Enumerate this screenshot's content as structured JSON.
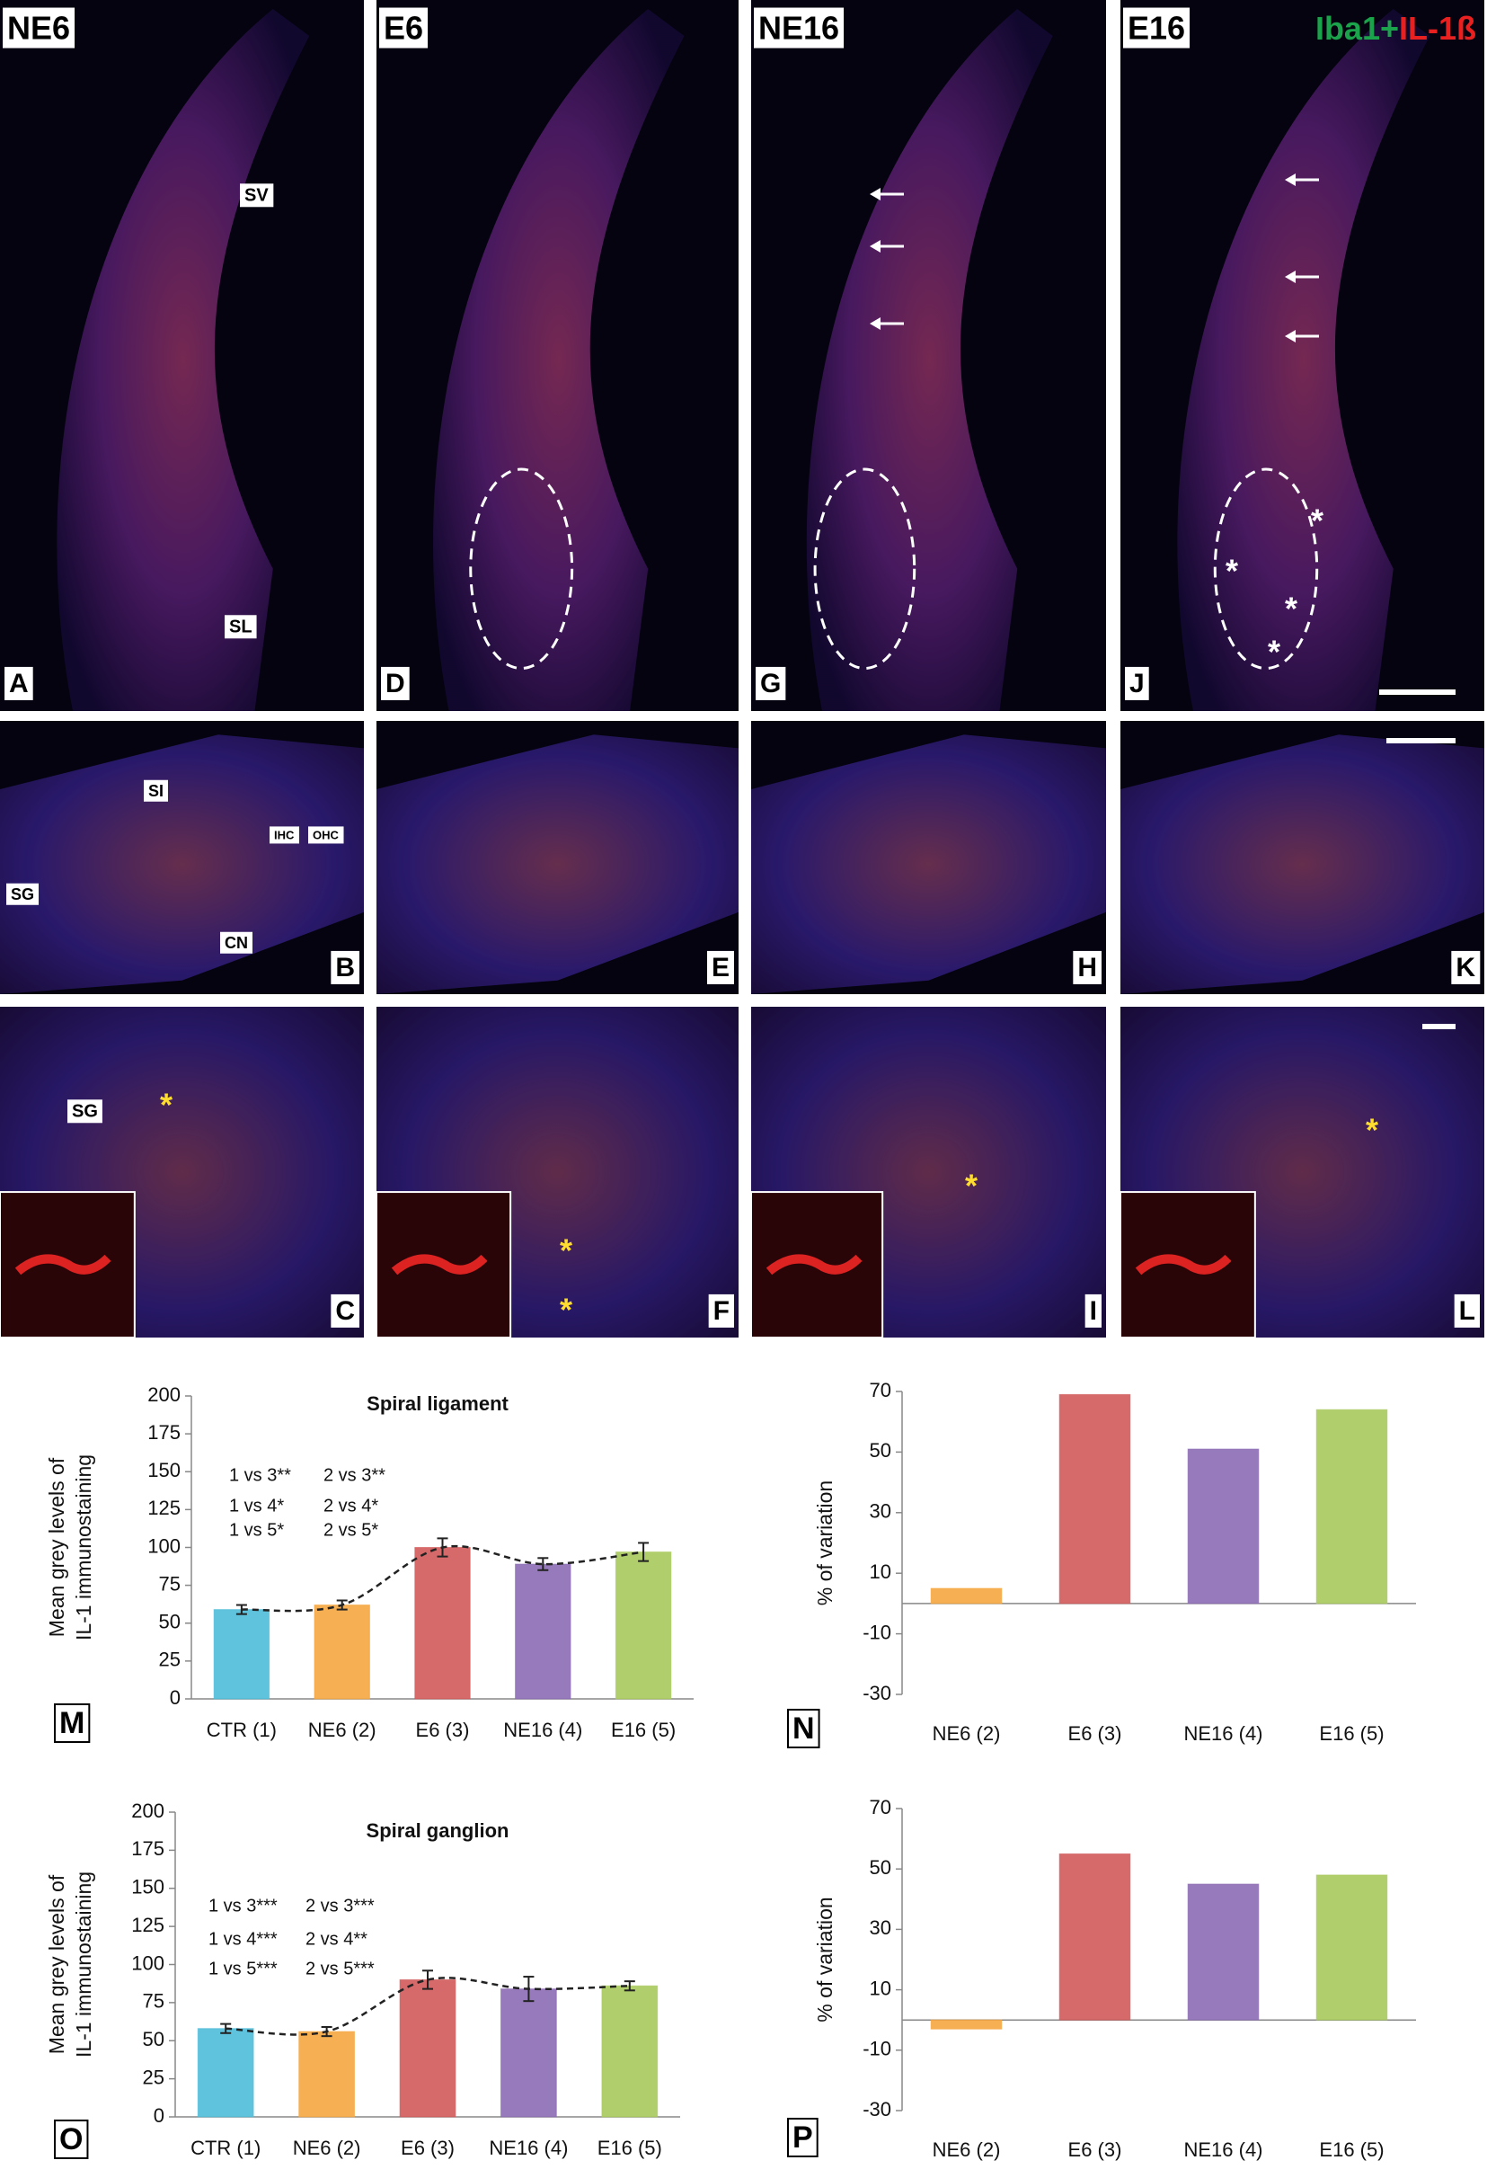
{
  "panels": {
    "row1": [
      {
        "title": "NE6",
        "letter": "A"
      },
      {
        "title": "E6",
        "letter": "D"
      },
      {
        "title": "NE16",
        "letter": "G"
      },
      {
        "title": "E16",
        "letter": "J"
      }
    ],
    "legend": [
      "Iba1+",
      "IL-1ß"
    ],
    "row1_labels": [
      "SV",
      "SL"
    ],
    "row2_letters": [
      "B",
      "E",
      "H",
      "K"
    ],
    "row2_labels": [
      "SI",
      "IHC",
      "OHC",
      "SG",
      "CN"
    ],
    "row3_letters": [
      "C",
      "F",
      "I",
      "L"
    ],
    "row3_labels": [
      "SG"
    ],
    "asterisk": "*"
  },
  "chart_data": [
    {
      "type": "bar",
      "panel_label": "M",
      "title": "Spiral ligament",
      "ylabel": [
        "Mean grey levels of",
        "IL-1 immunostaining"
      ],
      "categories": [
        "CTR (1)",
        "NE6 (2)",
        "E6 (3)",
        "NE16 (4)",
        "E16 (5)"
      ],
      "values": [
        59,
        62,
        100,
        89,
        97
      ],
      "errors": [
        3,
        3,
        6,
        4,
        6
      ],
      "colors": [
        "#4fbcd9",
        "#f5a640",
        "#d25a5a",
        "#8c6cb4",
        "#a9c95c"
      ],
      "annotations": [
        "1 vs 3**",
        "1 vs 4*",
        "1 vs 5*",
        "2 vs 3**",
        "2 vs 4*",
        "2 vs 5*"
      ],
      "trend_line": true,
      "ylim": [
        0,
        200
      ],
      "yticks": [
        0,
        25,
        50,
        75,
        100,
        125,
        150,
        175,
        200
      ]
    },
    {
      "type": "bar",
      "panel_label": "N",
      "ylabel": [
        "% of variation"
      ],
      "categories": [
        "NE6 (2)",
        "E6 (3)",
        "NE16 (4)",
        "E16 (5)"
      ],
      "values": [
        5,
        69,
        51,
        64
      ],
      "colors": [
        "#f5a640",
        "#d25a5a",
        "#8c6cb4",
        "#a9c95c"
      ],
      "ylim": [
        -30,
        70
      ],
      "yticks": [
        -30,
        -10,
        10,
        30,
        50,
        70
      ]
    },
    {
      "type": "bar",
      "panel_label": "O",
      "title": "Spiral ganglion",
      "ylabel": [
        "Mean grey levels of",
        "IL-1 immunostaining"
      ],
      "categories": [
        "CTR (1)",
        "NE6 (2)",
        "E6 (3)",
        "NE16 (4)",
        "E16 (5)"
      ],
      "values": [
        58,
        56,
        90,
        84,
        86
      ],
      "errors": [
        3,
        3,
        6,
        8,
        3
      ],
      "colors": [
        "#4fbcd9",
        "#f5a640",
        "#d25a5a",
        "#8c6cb4",
        "#a9c95c"
      ],
      "annotations": [
        "1 vs 3***",
        "1 vs 4***",
        "1 vs 5***",
        "2 vs 3***",
        "2 vs 4**",
        "2 vs 5***"
      ],
      "trend_line": true,
      "ylim": [
        0,
        200
      ],
      "yticks": [
        0,
        25,
        50,
        75,
        100,
        125,
        150,
        175,
        200
      ]
    },
    {
      "type": "bar",
      "panel_label": "P",
      "ylabel": [
        "% of variation"
      ],
      "categories": [
        "NE6 (2)",
        "E6 (3)",
        "NE16 (4)",
        "E16 (5)"
      ],
      "values": [
        -3,
        55,
        45,
        48
      ],
      "colors": [
        "#f5a640",
        "#d25a5a",
        "#8c6cb4",
        "#a9c95c"
      ],
      "ylim": [
        -30,
        70
      ],
      "yticks": [
        -30,
        -10,
        10,
        30,
        50,
        70
      ]
    }
  ]
}
